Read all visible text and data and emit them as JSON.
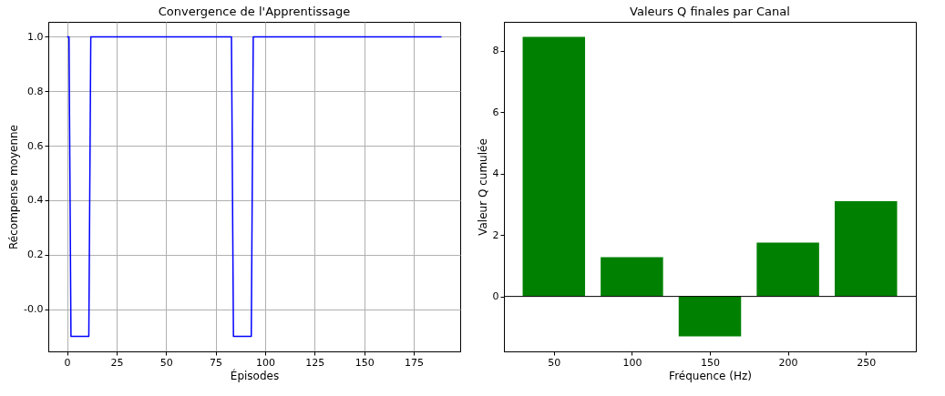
{
  "chart_data": [
    {
      "type": "line",
      "title": "Convergence de l'Apprentissage",
      "xlabel": "Épisodes",
      "ylabel": "Récompense moyenne",
      "x": [
        0,
        1,
        2,
        11,
        12,
        83,
        84,
        93,
        94,
        189
      ],
      "series": [
        {
          "color": "#0000ff",
          "values": [
            1,
            1,
            -0.1,
            -0.1,
            1,
            1,
            -0.1,
            -0.1,
            1,
            1
          ]
        }
      ],
      "xlim": [
        -9.45,
        198.45
      ],
      "xticks": [
        0,
        25,
        50,
        75,
        100,
        125,
        150,
        175
      ],
      "ylim": [
        -0.155,
        1.055
      ],
      "yticks": [
        {
          "value": 0,
          "label": "-0.0"
        },
        0.2,
        0.4,
        0.6,
        0.8,
        {
          "value": 1,
          "label": "1.0"
        }
      ],
      "grid": true
    },
    {
      "type": "bar",
      "title": "Valeurs Q finales par Canal",
      "xlabel": "Fréquence (Hz)",
      "ylabel": "Valeur Q cumulée",
      "x": [
        50,
        100,
        150,
        200,
        250
      ],
      "series": [
        {
          "color": "#008000",
          "values": [
            8.45,
            1.28,
            -1.3,
            1.75,
            3.1
          ]
        }
      ],
      "xlim": [
        18,
        282
      ],
      "xticks": [
        50,
        100,
        150,
        200,
        250
      ],
      "ylim": [
        -1.79,
        8.94
      ],
      "yticks": [
        0,
        2,
        4,
        6,
        8
      ],
      "ref_lines": [
        {
          "axis": "y",
          "value": 0,
          "color": "#000000"
        }
      ]
    }
  ]
}
